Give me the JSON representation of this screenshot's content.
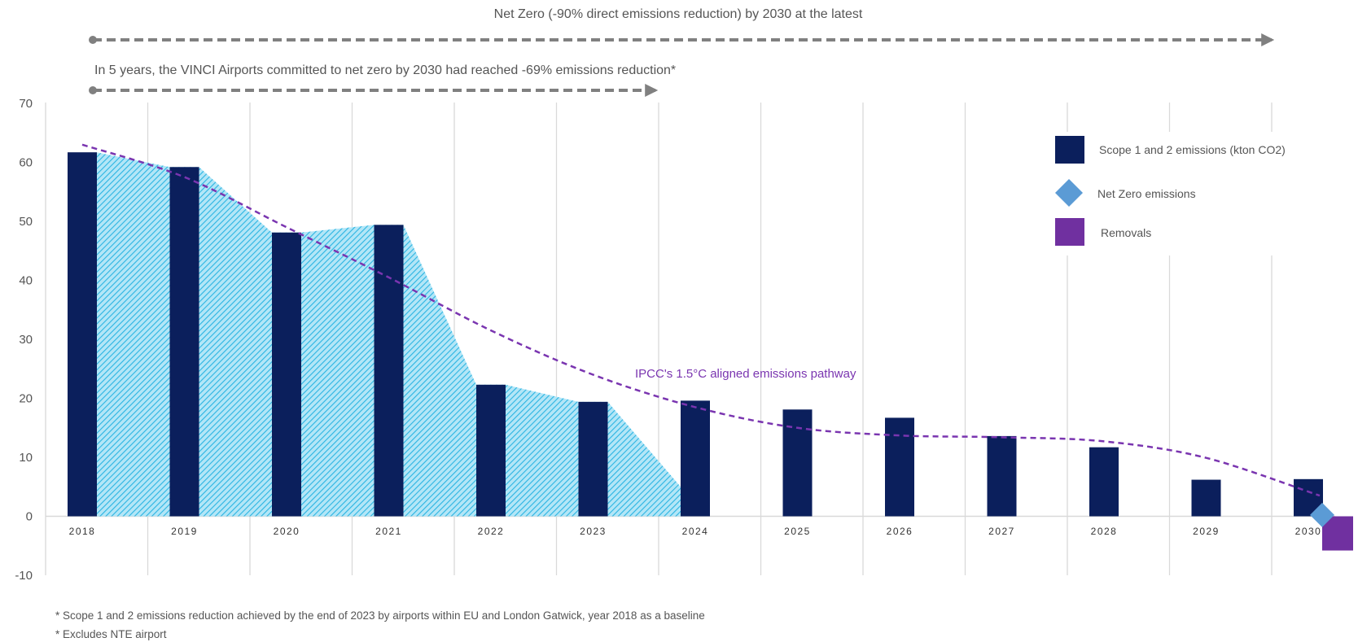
{
  "headlines": {
    "net_zero": "Net Zero (-90% direct emissions reduction) by 2030 at the latest",
    "progress": "In 5 years, the VINCI Airports committed to net zero by 2030 had reached -69% emissions reduction*"
  },
  "footnotes": [
    "* Scope 1 and 2 emissions reduction achieved by the end of 2023 by airports within EU and London Gatwick, year 2018 as a baseline",
    "* Excludes NTE airport"
  ],
  "colors": {
    "bar": "#0b1f5c",
    "net_zero_marker": "#5b9bd5",
    "removals": "#7030a0",
    "pathway": "#7a35b0",
    "hatch_line": "#2ab4e2",
    "hatch_bg": "#b3e6f7",
    "grid": "#d9d9d9",
    "arrow": "#808080"
  },
  "chart_data": {
    "type": "bar",
    "categories": [
      "2018",
      "2019",
      "2020",
      "2021",
      "2022",
      "2023",
      "2024",
      "2025",
      "2026",
      "2027",
      "2028",
      "2029",
      "2030"
    ],
    "series": [
      {
        "name": "Scope 1 and 2 emissions (kton CO2)",
        "values": [
          61.7,
          59.2,
          48.1,
          49.4,
          22.3,
          19.4,
          19.6,
          18.1,
          16.7,
          13.6,
          11.7,
          6.2,
          6.3
        ]
      },
      {
        "name": "Net Zero emissions",
        "type": "scatter",
        "category": "2030",
        "value": 0.5
      },
      {
        "name": "Removals",
        "category": "2030",
        "value": -5.8
      }
    ],
    "pathway": {
      "label": "IPCC's 1.5°C aligned emissions pathway",
      "values": [
        63,
        57.5,
        49,
        40.5,
        31.5,
        24,
        18.5,
        15,
        13.7,
        13.4,
        12.7,
        9.9,
        3.5
      ]
    },
    "reduction_area": {
      "categories": [
        "2018",
        "2019",
        "2020",
        "2021",
        "2022",
        "2023",
        "2024"
      ],
      "top_values": [
        61.7,
        59.2,
        48.1,
        49.4,
        22.3,
        19.4,
        5
      ]
    },
    "ylim": [
      -10,
      70
    ],
    "yticks": [
      -10,
      0,
      10,
      20,
      30,
      40,
      50,
      60,
      70
    ],
    "legend": {
      "placement": "top-right",
      "items": [
        {
          "label": "Scope 1 and 2 emissions (kton CO2)",
          "shape": "square",
          "color": "#0b1f5c"
        },
        {
          "label": "Net Zero emissions",
          "shape": "diamond",
          "color": "#5b9bd5"
        },
        {
          "label": "Removals",
          "shape": "square",
          "color": "#7030a0"
        }
      ]
    },
    "title": "",
    "xlabel": "",
    "ylabel": ""
  }
}
